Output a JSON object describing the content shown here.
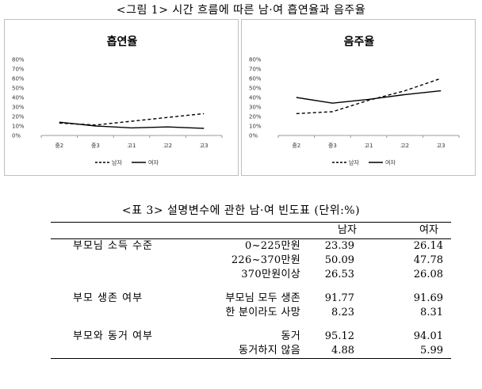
{
  "figure_caption": "<그림 1> 시간 흐름에 따른 남·여 흡연율과 음주율",
  "colors": {
    "line": "#000000",
    "border": "#bfbfbf",
    "grid": "#d9d9d9"
  },
  "chart_data": [
    {
      "type": "line",
      "title": "흡연율",
      "categories": [
        "중2",
        "중3",
        "고1",
        "고2",
        "고3"
      ],
      "yticks": [
        "0%",
        "10%",
        "20%",
        "30%",
        "40%",
        "50%",
        "60%",
        "70%",
        "80%"
      ],
      "ylim": [
        0,
        80
      ],
      "grid": false,
      "legend": "bottom",
      "series": [
        {
          "name": "남자",
          "style": "dashed",
          "values": [
            13,
            11,
            15,
            19,
            23
          ]
        },
        {
          "name": "여자",
          "style": "solid",
          "values": [
            14,
            10,
            8,
            9,
            7.5
          ]
        }
      ]
    },
    {
      "type": "line",
      "title": "음주율",
      "categories": [
        "중2",
        "중3",
        "고1",
        "고2",
        "고3"
      ],
      "yticks": [
        "0%",
        "10%",
        "20%",
        "30%",
        "40%",
        "50%",
        "60%",
        "70%",
        "80%"
      ],
      "ylim": [
        0,
        80
      ],
      "grid": false,
      "legend": "bottom",
      "series": [
        {
          "name": "남자",
          "style": "dashed",
          "values": [
            23,
            25,
            37,
            47,
            60
          ]
        },
        {
          "name": "여자",
          "style": "solid",
          "values": [
            40,
            34,
            38,
            43,
            47
          ]
        }
      ]
    }
  ],
  "table": {
    "caption": "<표 3> 설명변수에 관한 남·여 빈도표 (단위:%)",
    "header": {
      "male": "남자",
      "female": "여자"
    },
    "groups": [
      {
        "category": "부모님 소득 수준",
        "rows": [
          {
            "label": "0~225만원",
            "male": "23.39",
            "female": "26.14"
          },
          {
            "label": "226~370만원",
            "male": "50.09",
            "female": "47.78"
          },
          {
            "label": "370만원이상",
            "male": "26.53",
            "female": "26.08"
          }
        ]
      },
      {
        "category": "부모 생존 여부",
        "rows": [
          {
            "label": "부모님 모두 생존",
            "male": "91.77",
            "female": "91.69"
          },
          {
            "label": "한 분이라도 사망",
            "male": "8.23",
            "female": "8.31"
          }
        ]
      },
      {
        "category": "부모와 동거 여부",
        "rows": [
          {
            "label": "동거",
            "male": "95.12",
            "female": "94.01"
          },
          {
            "label": "동거하지 않음",
            "male": "4.88",
            "female": "5.99"
          }
        ]
      }
    ]
  }
}
